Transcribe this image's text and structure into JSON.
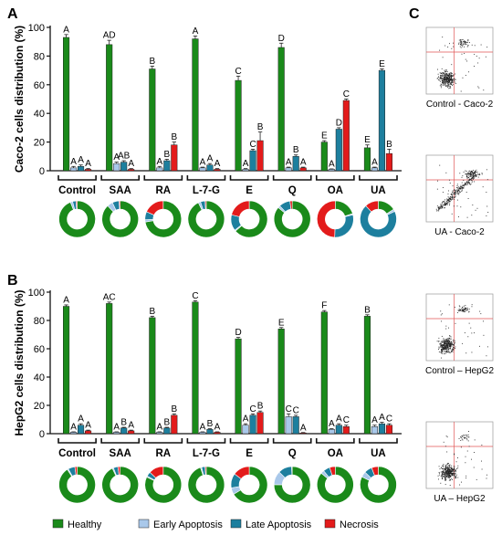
{
  "colors": {
    "Healthy": "#1a8a1a",
    "Early Apoptosis": "#a9c8ea",
    "Late Apoptosis": "#1d7f9e",
    "Necrosis": "#e31b1b",
    "axis": "#111111",
    "flow_border": "#999999",
    "quadrant_line": "#e05555",
    "dot": "#222222"
  },
  "panel_labels": {
    "a": "A",
    "b": "B",
    "c": "C"
  },
  "legend": [
    "Healthy",
    "Early Apoptosis",
    "Late Apoptosis",
    "Necrosis"
  ],
  "chart_data": [
    {
      "type": "bar",
      "panel": "A",
      "ylabel": "Caco-2 cells distribution (%)",
      "ylim": [
        0,
        100
      ],
      "yticks": [
        0,
        20,
        40,
        60,
        80,
        100
      ],
      "categories": [
        "Control",
        "SAA",
        "RA",
        "L-7-G",
        "E",
        "Q",
        "OA",
        "UA"
      ],
      "series": [
        {
          "name": "Healthy",
          "values": [
            93,
            88,
            71,
            92,
            63,
            86,
            20,
            16
          ],
          "errors": [
            2,
            3,
            2,
            2,
            3,
            3,
            1,
            2
          ],
          "letters": [
            "A",
            "AD",
            "B",
            "A",
            "C",
            "D",
            "E",
            "E"
          ]
        },
        {
          "name": "Early Apoptosis",
          "values": [
            2,
            5,
            2,
            2,
            1,
            2,
            1,
            2
          ],
          "errors": [
            1,
            1,
            1,
            0.5,
            0.5,
            0.5,
            0.3,
            0.5
          ],
          "letters": [
            "A",
            "A",
            "A",
            "A",
            "A",
            "A",
            "A",
            "A"
          ]
        },
        {
          "name": "Late Apoptosis",
          "values": [
            3,
            6,
            7,
            4,
            14,
            10,
            29,
            70
          ],
          "errors": [
            1,
            1,
            1,
            1,
            1,
            1,
            1,
            1
          ],
          "letters": [
            "A",
            "AB",
            "B",
            "A",
            "C",
            "B",
            "D",
            "E"
          ]
        },
        {
          "name": "Necrosis",
          "values": [
            1,
            1,
            18,
            1,
            21,
            2,
            49,
            12
          ],
          "errors": [
            0.5,
            0.5,
            2,
            0.5,
            6,
            0.5,
            1,
            3
          ],
          "letters": [
            "A",
            "A",
            "B",
            "A",
            "B",
            "A",
            "C",
            "B"
          ]
        }
      ],
      "donuts": [
        [
          93,
          2,
          3,
          1
        ],
        [
          88,
          5,
          6,
          1
        ],
        [
          71,
          2,
          7,
          18
        ],
        [
          92,
          2,
          4,
          1
        ],
        [
          63,
          1,
          14,
          21
        ],
        [
          86,
          2,
          10,
          2
        ],
        [
          20,
          1,
          29,
          49
        ],
        [
          16,
          2,
          70,
          12
        ]
      ]
    },
    {
      "type": "bar",
      "panel": "B",
      "ylabel": "HepG2 cells distribution (%)",
      "ylim": [
        0,
        100
      ],
      "yticks": [
        0,
        20,
        40,
        60,
        80,
        100
      ],
      "categories": [
        "Control",
        "SAA",
        "RA",
        "L-7-G",
        "E",
        "Q",
        "OA",
        "UA"
      ],
      "series": [
        {
          "name": "Healthy",
          "values": [
            90,
            92,
            82,
            93,
            67,
            74,
            86,
            83
          ],
          "errors": [
            1,
            1,
            1,
            1,
            1,
            1,
            1,
            1
          ],
          "letters": [
            "A",
            "AC",
            "B",
            "C",
            "D",
            "E",
            "F",
            "B"
          ]
        },
        {
          "name": "Early Apoptosis",
          "values": [
            1,
            1,
            1,
            1,
            6,
            12,
            3,
            5
          ],
          "errors": [
            0.3,
            0.3,
            0.3,
            0.3,
            1,
            2,
            0.5,
            1
          ],
          "letters": [
            "A",
            "A",
            "A",
            "A",
            "A",
            "C",
            "A",
            "A"
          ]
        },
        {
          "name": "Late Apoptosis",
          "values": [
            6,
            4,
            4,
            3,
            13,
            12,
            6,
            7
          ],
          "errors": [
            1,
            0.5,
            0.5,
            0.5,
            1,
            1,
            1,
            1
          ],
          "letters": [
            "A",
            "B",
            "B",
            "B",
            "C",
            "C",
            "A",
            "A"
          ]
        },
        {
          "name": "Necrosis",
          "values": [
            2,
            2,
            13,
            1,
            15,
            0.5,
            5,
            6
          ],
          "errors": [
            0.5,
            0.5,
            1,
            0.3,
            1,
            0.3,
            1,
            1
          ],
          "letters": [
            "A",
            "A",
            "B",
            "A",
            "B",
            "A",
            "C",
            "C"
          ]
        }
      ],
      "donuts": [
        [
          90,
          1,
          6,
          2
        ],
        [
          92,
          1,
          4,
          2
        ],
        [
          82,
          1,
          4,
          13
        ],
        [
          93,
          1,
          3,
          1
        ],
        [
          67,
          6,
          13,
          15
        ],
        [
          74,
          12,
          12,
          0.5
        ],
        [
          86,
          3,
          6,
          5
        ],
        [
          83,
          5,
          7,
          6
        ]
      ]
    }
  ],
  "flow_plots": [
    {
      "caption": "Control - Caco-2",
      "pattern": "control"
    },
    {
      "caption": "UA - Caco-2",
      "pattern": "ua"
    },
    {
      "caption": "Control – HepG2",
      "pattern": "control"
    },
    {
      "caption": "UA – HepG2",
      "pattern": "ua_hep"
    }
  ]
}
